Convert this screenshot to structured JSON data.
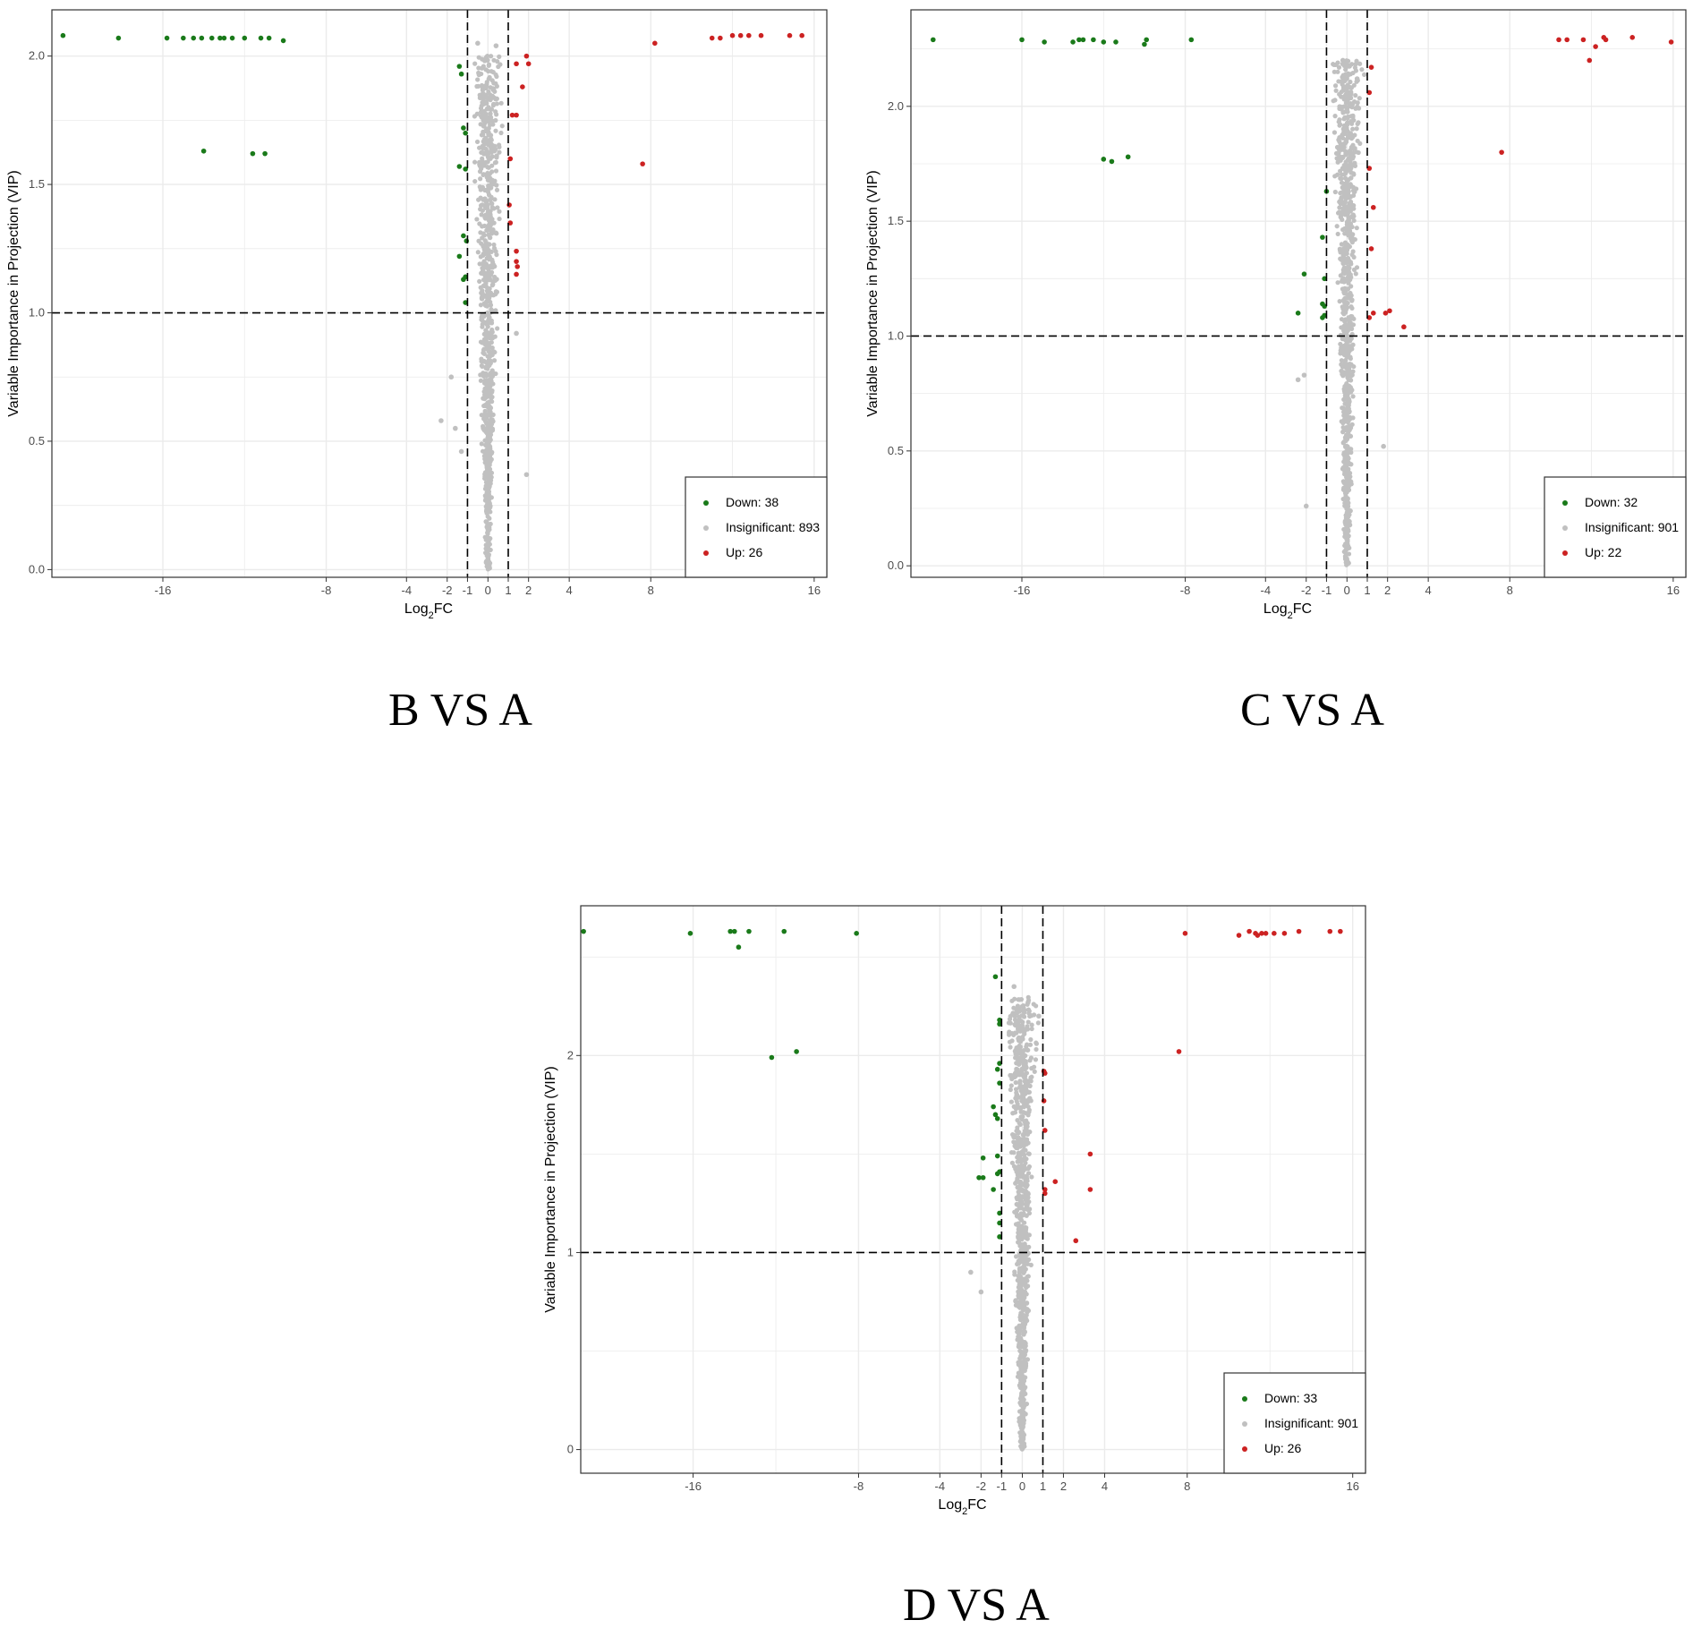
{
  "colors": {
    "down": "#1a7a1a",
    "insignificant": "#c0c0c0",
    "up": "#cc2222",
    "grid": "#ebebeb",
    "frame": "#333333"
  },
  "chart_data": [
    {
      "type": "scatter",
      "caption": "B VS A",
      "xlabel": "Log2FC",
      "ylabel": "Variable Importance in Projection (VIP)",
      "x_ticks": [
        "-16",
        "-8",
        "-4",
        "-2",
        "-1",
        "0",
        "1",
        "2",
        "4",
        "8",
        "16"
      ],
      "y_ticks": [
        "0.0",
        "0.5",
        "1.0",
        "1.5",
        "2.0"
      ],
      "ylim": [
        -0.03,
        2.18
      ],
      "hline": 1.0,
      "vlines": [
        -1,
        1
      ],
      "legend": [
        {
          "label": "Down: 38",
          "key": "down"
        },
        {
          "label": "Insignificant: 893",
          "key": "insignificant"
        },
        {
          "label": "Up: 26",
          "key": "up"
        }
      ],
      "legend_position": "bottom-right",
      "grid": true,
      "series": [
        {
          "key": "down",
          "points": [
            [
              -19.6,
              2.08
            ],
            [
              -17.6,
              2.07
            ],
            [
              -15.8,
              2.07
            ],
            [
              -15,
              2.07
            ],
            [
              -14.5,
              2.07
            ],
            [
              -14.1,
              2.07
            ],
            [
              -13.6,
              2.07
            ],
            [
              -13.2,
              2.07
            ],
            [
              -13,
              2.07
            ],
            [
              -12.6,
              2.07
            ],
            [
              -12,
              2.07
            ],
            [
              -11.2,
              2.07
            ],
            [
              -10.8,
              2.07
            ],
            [
              -10.1,
              2.06
            ],
            [
              -14,
              1.63
            ],
            [
              -11.6,
              1.62
            ],
            [
              -11,
              1.62
            ],
            [
              -1.4,
              1.96
            ],
            [
              -1.3,
              1.93
            ],
            [
              -1.2,
              1.72
            ],
            [
              -1.1,
              1.7
            ],
            [
              -1.4,
              1.57
            ],
            [
              -1.1,
              1.56
            ],
            [
              -1.2,
              1.3
            ],
            [
              -1.05,
              1.28
            ],
            [
              -1.4,
              1.22
            ],
            [
              -1.1,
              1.14
            ],
            [
              -1.2,
              1.13
            ],
            [
              -1.1,
              1.04
            ]
          ]
        },
        {
          "key": "up",
          "points": [
            [
              7.6,
              1.58
            ],
            [
              8.2,
              2.05
            ],
            [
              11,
              2.07
            ],
            [
              11.4,
              2.07
            ],
            [
              12,
              2.08
            ],
            [
              12.4,
              2.08
            ],
            [
              12.8,
              2.08
            ],
            [
              13.4,
              2.08
            ],
            [
              14.8,
              2.08
            ],
            [
              15.4,
              2.08
            ],
            [
              1.4,
              1.97
            ],
            [
              1.7,
              1.88
            ],
            [
              1.9,
              2.0
            ],
            [
              2.0,
              1.97
            ],
            [
              1.2,
              1.77
            ],
            [
              1.4,
              1.77
            ],
            [
              1.1,
              1.6
            ],
            [
              1.05,
              1.42
            ],
            [
              1.1,
              1.35
            ],
            [
              1.4,
              1.24
            ],
            [
              1.4,
              1.2
            ],
            [
              1.45,
              1.18
            ],
            [
              1.4,
              1.15
            ]
          ]
        },
        {
          "key": "insignificant",
          "points": [
            [
              -2.3,
              0.58
            ],
            [
              -1.8,
              0.75
            ],
            [
              -1.6,
              0.55
            ],
            [
              -1.3,
              0.46
            ],
            [
              1.9,
              0.37
            ],
            [
              1.4,
              0.92
            ],
            [
              -0.5,
              2.05
            ],
            [
              0.4,
              2.04
            ]
          ]
        }
      ],
      "insignificant_cloud": {
        "n": 893,
        "x_spread": 0.8,
        "vip_max": 2.0,
        "vip_min": 0.0
      }
    },
    {
      "type": "scatter",
      "caption": "C VS A",
      "xlabel": "Log2FC",
      "ylabel": "Variable Importance in Projection (VIP)",
      "x_ticks": [
        "-16",
        "-8",
        "-4",
        "-2",
        "-1",
        "0",
        "1",
        "2",
        "4",
        "8",
        "16"
      ],
      "y_ticks": [
        "0.0",
        "0.5",
        "1.0",
        "1.5",
        "2.0"
      ],
      "ylim": [
        -0.05,
        2.42
      ],
      "hline": 1.0,
      "vlines": [
        -1,
        1
      ],
      "legend": [
        {
          "label": "Down: 32",
          "key": "down"
        },
        {
          "label": "Insignificant: 901",
          "key": "insignificant"
        },
        {
          "label": "Up: 22",
          "key": "up"
        }
      ],
      "legend_position": "bottom-right",
      "grid": true,
      "series": [
        {
          "key": "down",
          "points": [
            [
              -19.2,
              2.29
            ],
            [
              -16,
              2.29
            ],
            [
              -14.9,
              2.28
            ],
            [
              -13.5,
              2.28
            ],
            [
              -13.2,
              2.29
            ],
            [
              -13,
              2.29
            ],
            [
              -12.5,
              2.29
            ],
            [
              -12,
              2.28
            ],
            [
              -11.4,
              2.28
            ],
            [
              -10,
              2.27
            ],
            [
              -9.9,
              2.29
            ],
            [
              -7.7,
              2.29
            ],
            [
              -12,
              1.77
            ],
            [
              -11.6,
              1.76
            ],
            [
              -10.8,
              1.78
            ],
            [
              -1,
              1.63
            ],
            [
              -1.2,
              1.43
            ],
            [
              -2.1,
              1.27
            ],
            [
              -1.1,
              1.25
            ],
            [
              -1.2,
              1.14
            ],
            [
              -1.1,
              1.13
            ],
            [
              -2.4,
              1.1
            ],
            [
              -1.1,
              1.09
            ],
            [
              -1.2,
              1.08
            ]
          ]
        },
        {
          "key": "up",
          "points": [
            [
              7.6,
              1.8
            ],
            [
              10.4,
              2.29
            ],
            [
              10.8,
              2.29
            ],
            [
              11.6,
              2.29
            ],
            [
              11.9,
              2.2
            ],
            [
              12.2,
              2.26
            ],
            [
              12.6,
              2.3
            ],
            [
              12.7,
              2.29
            ],
            [
              14,
              2.3
            ],
            [
              15.9,
              2.28
            ],
            [
              1.2,
              2.17
            ],
            [
              1.1,
              2.06
            ],
            [
              1.1,
              1.73
            ],
            [
              1.3,
              1.56
            ],
            [
              1.2,
              1.38
            ],
            [
              1.3,
              1.1
            ],
            [
              1.1,
              1.08
            ],
            [
              1.9,
              1.1
            ],
            [
              2.1,
              1.11
            ],
            [
              2.8,
              1.04
            ]
          ]
        },
        {
          "key": "insignificant",
          "points": [
            [
              -2.4,
              0.81
            ],
            [
              -2.1,
              0.83
            ],
            [
              -2,
              0.26
            ],
            [
              1.8,
              0.52
            ],
            [
              -0.2,
              2.2
            ],
            [
              0.5,
              2.12
            ]
          ]
        }
      ],
      "insignificant_cloud": {
        "n": 901,
        "x_spread": 0.8,
        "vip_max": 2.2,
        "vip_min": 0.0
      }
    },
    {
      "type": "scatter",
      "caption": "D VS A",
      "xlabel": "Log2FC",
      "ylabel": "Variable Importance in Projection (VIP)",
      "x_ticks": [
        "-16",
        "-8",
        "-4",
        "-2",
        "-1",
        "0",
        "1",
        "2",
        "4",
        "8",
        "16"
      ],
      "y_ticks": [
        "0",
        "1",
        "2"
      ],
      "ylim": [
        -0.12,
        2.76
      ],
      "hline": 1.0,
      "vlines": [
        -1,
        1
      ],
      "legend": [
        {
          "label": "Down: 33",
          "key": "down"
        },
        {
          "label": "Insignificant: 901",
          "key": "insignificant"
        },
        {
          "label": "Up: 26",
          "key": "up"
        }
      ],
      "legend_position": "bottom-right",
      "grid": true,
      "series": [
        {
          "key": "down",
          "points": [
            [
              -19.9,
              2.63
            ],
            [
              -16.1,
              2.62
            ],
            [
              -14.2,
              2.63
            ],
            [
              -14,
              2.63
            ],
            [
              -13.8,
              2.55
            ],
            [
              -13.3,
              2.63
            ],
            [
              -11.6,
              2.63
            ],
            [
              -8.1,
              2.62
            ],
            [
              -12.2,
              1.99
            ],
            [
              -11,
              2.02
            ],
            [
              -1.3,
              2.4
            ],
            [
              -1.1,
              2.18
            ],
            [
              -1.1,
              2.16
            ],
            [
              -1.1,
              1.96
            ],
            [
              -1.2,
              1.93
            ],
            [
              -1.1,
              1.86
            ],
            [
              -1.4,
              1.74
            ],
            [
              -1.3,
              1.7
            ],
            [
              -1.2,
              1.68
            ],
            [
              -1.2,
              1.49
            ],
            [
              -1.9,
              1.48
            ],
            [
              -1.1,
              1.41
            ],
            [
              -1.2,
              1.4
            ],
            [
              -2.1,
              1.38
            ],
            [
              -1.9,
              1.38
            ],
            [
              -1.4,
              1.32
            ],
            [
              -1.1,
              1.2
            ],
            [
              -1.1,
              1.15
            ],
            [
              -1.1,
              1.08
            ]
          ]
        },
        {
          "key": "up",
          "points": [
            [
              7.6,
              2.02
            ],
            [
              7.9,
              2.62
            ],
            [
              10.5,
              2.61
            ],
            [
              11,
              2.63
            ],
            [
              11.3,
              2.62
            ],
            [
              11.4,
              2.61
            ],
            [
              11.6,
              2.62
            ],
            [
              11.8,
              2.62
            ],
            [
              12.2,
              2.62
            ],
            [
              12.7,
              2.62
            ],
            [
              13.4,
              2.63
            ],
            [
              14.9,
              2.63
            ],
            [
              15.4,
              2.63
            ],
            [
              1.05,
              1.92
            ],
            [
              1.1,
              1.91
            ],
            [
              1.05,
              1.77
            ],
            [
              1.1,
              1.62
            ],
            [
              1.1,
              1.32
            ],
            [
              1.1,
              1.3
            ],
            [
              1.6,
              1.36
            ],
            [
              3.3,
              1.5
            ],
            [
              3.3,
              1.32
            ],
            [
              2.6,
              1.06
            ]
          ]
        },
        {
          "key": "insignificant",
          "points": [
            [
              -2.5,
              0.9
            ],
            [
              -2,
              0.8
            ],
            [
              -0.4,
              2.35
            ],
            [
              0.8,
              2.2
            ]
          ]
        }
      ],
      "insignificant_cloud": {
        "n": 901,
        "x_spread": 0.8,
        "vip_max": 2.3,
        "vip_min": 0.0
      }
    }
  ]
}
